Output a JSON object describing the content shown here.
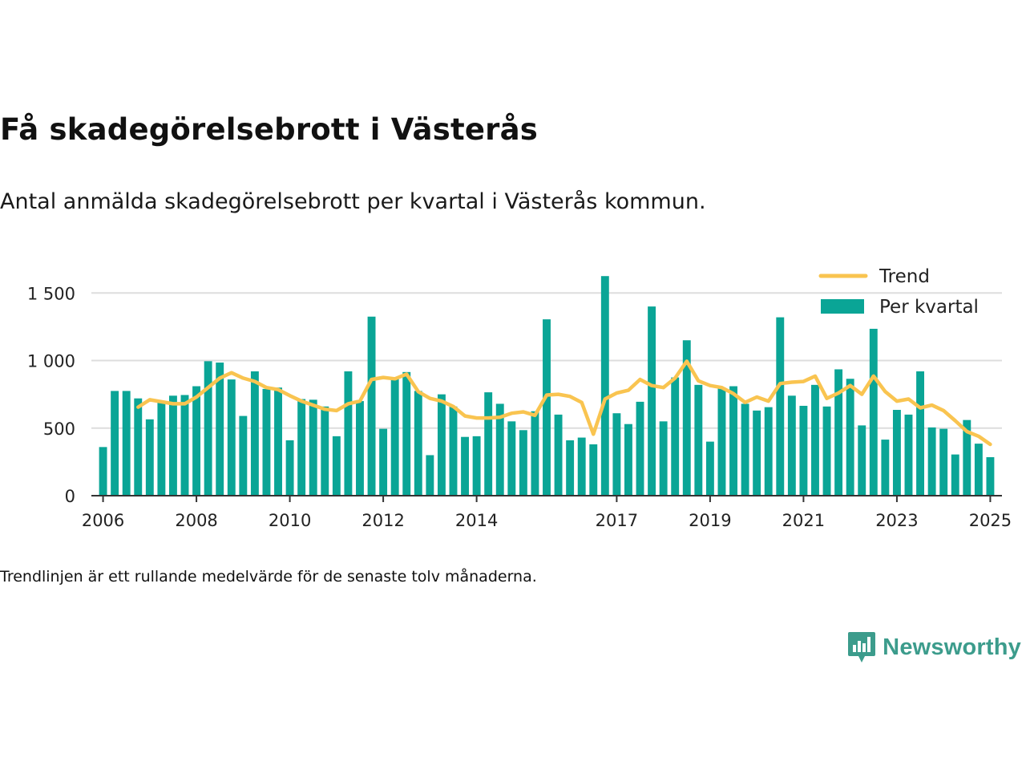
{
  "title": "Få skadegörelsebrott i Västerås",
  "subtitle": "Antal anmälda skadegörelsebrott per kvartal i Västerås kommun.",
  "footnote": "Trendlinjen är ett rullande medelvärde för de senaste tolv månaderna.",
  "brand": {
    "name": "Newsworthy",
    "icon": "newsworthy-logo-icon",
    "color": "#3c9c8c"
  },
  "colors": {
    "bar": "#0aa596",
    "trend": "#f9c450",
    "grid": "#dddddd",
    "axis": "#333333"
  },
  "chart_data": {
    "type": "bar",
    "x_start": 2006.0,
    "x_step": 0.25,
    "ylim": [
      0,
      1650
    ],
    "xlim": [
      2005.75,
      2025.25
    ],
    "yticks": [
      0,
      500,
      1000,
      1500
    ],
    "ytick_labels": [
      "0",
      "500",
      "1 000",
      "1 500"
    ],
    "xticks": [
      2006,
      2008,
      2010,
      2012,
      2014,
      2017,
      2019,
      2021,
      2023,
      2025
    ],
    "xtick_labels": [
      "2006",
      "2008",
      "2010",
      "2012",
      "2014",
      "2017",
      "2019",
      "2021",
      "2023",
      "2025"
    ],
    "legend_position": "top-right",
    "grid": true,
    "series": [
      {
        "name": "Per kvartal",
        "type": "bar",
        "values": [
          360,
          775,
          775,
          720,
          565,
          690,
          740,
          745,
          810,
          995,
          985,
          860,
          590,
          920,
          790,
          800,
          410,
          715,
          710,
          660,
          440,
          920,
          700,
          1325,
          495,
          865,
          915,
          775,
          300,
          750,
          660,
          435,
          440,
          765,
          680,
          550,
          485,
          625,
          1305,
          600,
          410,
          430,
          380,
          1625,
          610,
          530,
          695,
          1400,
          550,
          875,
          1150,
          820,
          400,
          800,
          810,
          680,
          630,
          655,
          1320,
          740,
          665,
          820,
          660,
          935,
          865,
          520,
          1235,
          415,
          635,
          600,
          920,
          505,
          495,
          305,
          560,
          385,
          285
        ]
      },
      {
        "name": "Trend",
        "type": "line",
        "x_start": 2006.75,
        "values": [
          655,
          710,
          695,
          680,
          680,
          730,
          800,
          870,
          910,
          870,
          845,
          800,
          785,
          740,
          700,
          670,
          640,
          630,
          680,
          700,
          860,
          875,
          865,
          900,
          770,
          720,
          700,
          660,
          590,
          575,
          575,
          580,
          610,
          620,
          595,
          745,
          750,
          735,
          690,
          455,
          715,
          760,
          780,
          860,
          815,
          800,
          870,
          995,
          850,
          815,
          800,
          755,
          690,
          730,
          700,
          830,
          840,
          845,
          885,
          720,
          760,
          815,
          750,
          885,
          770,
          700,
          715,
          650,
          670,
          630,
          555,
          475,
          440,
          380
        ]
      }
    ]
  }
}
